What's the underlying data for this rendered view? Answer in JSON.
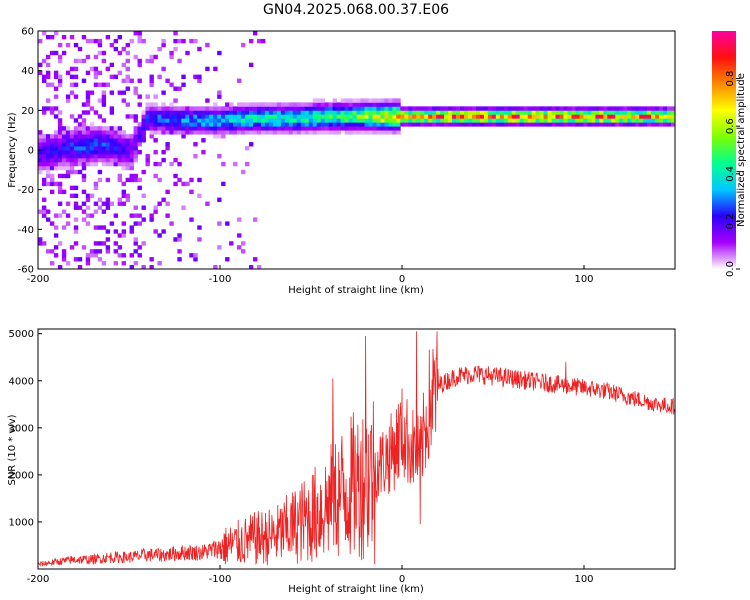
{
  "title": "GN04.2025.068.00.37.E06",
  "chart_data": [
    {
      "type": "heatmap",
      "xlabel": "Height of straight line (km)",
      "ylabel": "Frequency (Hz)",
      "xlim": [
        -200,
        150
      ],
      "ylim": [
        -60,
        60
      ],
      "x_ticks": [
        -200,
        -100,
        0,
        100
      ],
      "y_ticks": [
        60,
        40,
        20,
        0,
        -20,
        -40,
        -60
      ],
      "colorbar": {
        "label": "Normalized spectral amplitude",
        "range": [
          0,
          1
        ],
        "ticks": [
          "0.0",
          "0.2",
          "0.4",
          "0.6",
          "0.8"
        ],
        "colors": [
          "#ffffff",
          "#a800ff",
          "#2a00ff",
          "#00c8ff",
          "#00ff90",
          "#7cff00",
          "#ffff00",
          "#ff8800",
          "#ff1010",
          "#ff00a0"
        ]
      },
      "ridge": {
        "x": [
          -200,
          -185,
          -175,
          -165,
          -155,
          -148,
          -140,
          -120,
          -100,
          -80,
          -60,
          -40,
          -25,
          -15,
          0,
          20,
          50,
          80,
          95,
          110,
          130,
          150
        ],
        "freq": [
          -2,
          1,
          2,
          3,
          1,
          0,
          16,
          15,
          15,
          16,
          16,
          17,
          17,
          17,
          17,
          17,
          17,
          17,
          17,
          17,
          17,
          17
        ],
        "amplitude": [
          0.2,
          0.22,
          0.25,
          0.25,
          0.2,
          0.15,
          0.25,
          0.3,
          0.35,
          0.4,
          0.42,
          0.45,
          0.5,
          0.6,
          0.75,
          0.8,
          0.82,
          0.8,
          0.78,
          0.8,
          0.75,
          0.7
        ]
      }
    },
    {
      "type": "line",
      "xlabel": "Height of straight line (km)",
      "ylabel": "SNR (10 * v/v)",
      "xlim": [
        -200,
        150
      ],
      "ylim": [
        0,
        5100
      ],
      "x_ticks": [
        -200,
        -100,
        0,
        100
      ],
      "y_ticks": [
        1000,
        2000,
        3000,
        4000,
        5000
      ],
      "series": [
        {
          "color": "#ee2222",
          "x": [
            -200,
            -190,
            -180,
            -170,
            -160,
            -150,
            -140,
            -130,
            -120,
            -110,
            -100,
            -90,
            -80,
            -70,
            -60,
            -50,
            -40,
            -30,
            -20,
            -15,
            -10,
            -5,
            0,
            5,
            10,
            15,
            20,
            25,
            30,
            40,
            50,
            60,
            70,
            80,
            90,
            100,
            110,
            120,
            130,
            140,
            150
          ],
          "y": [
            100,
            150,
            200,
            200,
            250,
            250,
            300,
            300,
            350,
            350,
            450,
            550,
            650,
            700,
            900,
            1100,
            1400,
            1700,
            1900,
            2100,
            2300,
            2500,
            2900,
            2600,
            2400,
            3500,
            3900,
            4000,
            4100,
            4150,
            4100,
            4050,
            4000,
            3950,
            3900,
            3850,
            3800,
            3700,
            3600,
            3500,
            3450
          ],
          "spikes": [
            {
              "x": -20,
              "y": 4950
            },
            {
              "x": 8,
              "y": 5050
            },
            {
              "x": -38,
              "y": 4050
            },
            {
              "x": 90,
              "y": 4400
            },
            {
              "x": 10,
              "y": 950
            },
            {
              "x": -15,
              "y": 100
            }
          ]
        }
      ]
    }
  ]
}
